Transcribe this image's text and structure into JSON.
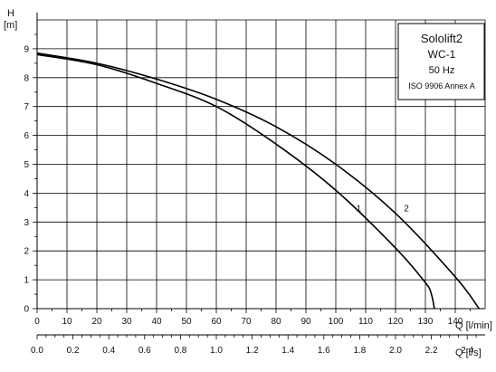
{
  "legend_box": {
    "line1": "Sololift2",
    "line2": "WC-1",
    "line3": "50 Hz",
    "line4": "ISO 9906 Annex A"
  },
  "chart_data": {
    "type": "line",
    "grid": true,
    "y_axis": {
      "title": "H",
      "unit": "[m]",
      "range": [
        0,
        10
      ],
      "ticks": [
        0,
        1,
        2,
        3,
        4,
        5,
        6,
        7,
        8,
        9
      ]
    },
    "x_axis_primary": {
      "title": "Q [l/min]",
      "range": [
        0,
        150
      ],
      "ticks": [
        0,
        10,
        20,
        30,
        40,
        50,
        60,
        70,
        80,
        90,
        100,
        110,
        120,
        130,
        140
      ]
    },
    "x_axis_secondary": {
      "title": "Q [l/s]",
      "range": [
        0,
        2.5
      ],
      "tick_labels": [
        "0.0",
        "0.2",
        "0.4",
        "0.6",
        "0.8",
        "1.0",
        "1.2",
        "1.4",
        "1.6",
        "1.8",
        "2.0",
        "2.2",
        "2.4"
      ]
    },
    "series": [
      {
        "name": "1",
        "x": [
          0,
          20,
          40,
          60,
          80,
          100,
          120,
          130,
          132,
          133
        ],
        "y": [
          8.8,
          8.45,
          7.8,
          7.0,
          5.7,
          4.1,
          2.1,
          0.9,
          0.5,
          0.0
        ]
      },
      {
        "name": "2",
        "x": [
          0,
          20,
          40,
          60,
          80,
          100,
          120,
          140,
          148
        ],
        "y": [
          8.85,
          8.5,
          7.95,
          7.25,
          6.3,
          5.0,
          3.3,
          1.1,
          0.0
        ]
      }
    ]
  }
}
